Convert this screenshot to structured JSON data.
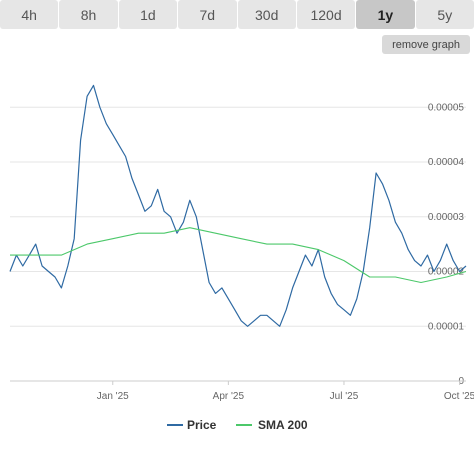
{
  "timeframes": {
    "tabs": [
      {
        "label": "4h",
        "active": false
      },
      {
        "label": "8h",
        "active": false
      },
      {
        "label": "1d",
        "active": false
      },
      {
        "label": "7d",
        "active": false
      },
      {
        "label": "30d",
        "active": false
      },
      {
        "label": "120d",
        "active": false
      },
      {
        "label": "1y",
        "active": true
      },
      {
        "label": "5y",
        "active": false
      }
    ]
  },
  "remove_graph_label": "remove graph",
  "colors": {
    "price": "#2f6aa3",
    "sma": "#4cc86a",
    "grid": "#e6e6e6",
    "tab_bg": "#e6e6e6",
    "tab_active_bg": "#c7c7c7"
  },
  "chart_data": {
    "type": "line",
    "title": "",
    "xlabel": "",
    "ylabel": "",
    "ylim": [
      0,
      5.9e-06
    ],
    "yticks": [
      "0",
      "0.00001",
      "0.00002",
      "0.00003",
      "0.00004",
      "0.00005"
    ],
    "xticks": [
      "Jan '25",
      "Apr '25",
      "Jul '25",
      "Oct '25"
    ],
    "grid": true,
    "legend_placement": "bottom-center",
    "series": [
      {
        "name": "Price",
        "color": "#2f6aa3",
        "values": [
          [
            0,
            2e-06
          ],
          [
            1,
            2.3e-06
          ],
          [
            2,
            2.1e-06
          ],
          [
            3,
            2.3e-06
          ],
          [
            4,
            2.5e-06
          ],
          [
            5,
            2.1e-06
          ],
          [
            6,
            2e-06
          ],
          [
            7,
            1.9e-06
          ],
          [
            8,
            1.7e-06
          ],
          [
            9,
            2.1e-06
          ],
          [
            10,
            2.6e-06
          ],
          [
            11,
            4.4e-06
          ],
          [
            12,
            5.2e-06
          ],
          [
            13,
            5.4e-06
          ],
          [
            14,
            5e-06
          ],
          [
            15,
            4.7e-06
          ],
          [
            16,
            4.5e-06
          ],
          [
            17,
            4.3e-06
          ],
          [
            18,
            4.1e-06
          ],
          [
            19,
            3.7e-06
          ],
          [
            20,
            3.4e-06
          ],
          [
            21,
            3.1e-06
          ],
          [
            22,
            3.2e-06
          ],
          [
            23,
            3.5e-06
          ],
          [
            24,
            3.1e-06
          ],
          [
            25,
            3e-06
          ],
          [
            26,
            2.7e-06
          ],
          [
            27,
            2.9e-06
          ],
          [
            28,
            3.3e-06
          ],
          [
            29,
            3e-06
          ],
          [
            30,
            2.4e-06
          ],
          [
            31,
            1.8e-06
          ],
          [
            32,
            1.6e-06
          ],
          [
            33,
            1.7e-06
          ],
          [
            34,
            1.5e-06
          ],
          [
            35,
            1.3e-06
          ],
          [
            36,
            1.1e-06
          ],
          [
            37,
            1e-06
          ],
          [
            38,
            1.1e-06
          ],
          [
            39,
            1.2e-06
          ],
          [
            40,
            1.2e-06
          ],
          [
            41,
            1.1e-06
          ],
          [
            42,
            1e-06
          ],
          [
            43,
            1.3e-06
          ],
          [
            44,
            1.7e-06
          ],
          [
            45,
            2e-06
          ],
          [
            46,
            2.3e-06
          ],
          [
            47,
            2.1e-06
          ],
          [
            48,
            2.4e-06
          ],
          [
            49,
            1.9e-06
          ],
          [
            50,
            1.6e-06
          ],
          [
            51,
            1.4e-06
          ],
          [
            52,
            1.3e-06
          ],
          [
            53,
            1.2e-06
          ],
          [
            54,
            1.5e-06
          ],
          [
            55,
            2e-06
          ],
          [
            56,
            2.8e-06
          ],
          [
            57,
            3.8e-06
          ],
          [
            58,
            3.6e-06
          ],
          [
            59,
            3.3e-06
          ],
          [
            60,
            2.9e-06
          ],
          [
            61,
            2.7e-06
          ],
          [
            62,
            2.4e-06
          ],
          [
            63,
            2.2e-06
          ],
          [
            64,
            2.1e-06
          ],
          [
            65,
            2.3e-06
          ],
          [
            66,
            2e-06
          ],
          [
            67,
            2.2e-06
          ],
          [
            68,
            2.5e-06
          ],
          [
            69,
            2.2e-06
          ],
          [
            70,
            2e-06
          ],
          [
            71,
            2.1e-06
          ]
        ]
      },
      {
        "name": "SMA 200",
        "color": "#4cc86a",
        "values": [
          [
            0,
            2.3e-06
          ],
          [
            4,
            2.3e-06
          ],
          [
            8,
            2.3e-06
          ],
          [
            12,
            2.5e-06
          ],
          [
            16,
            2.6e-06
          ],
          [
            20,
            2.7e-06
          ],
          [
            24,
            2.7e-06
          ],
          [
            28,
            2.8e-06
          ],
          [
            32,
            2.7e-06
          ],
          [
            36,
            2.6e-06
          ],
          [
            40,
            2.5e-06
          ],
          [
            44,
            2.5e-06
          ],
          [
            48,
            2.4e-06
          ],
          [
            52,
            2.2e-06
          ],
          [
            56,
            1.9e-06
          ],
          [
            60,
            1.9e-06
          ],
          [
            64,
            1.8e-06
          ],
          [
            68,
            1.9e-06
          ],
          [
            71,
            2e-06
          ]
        ]
      }
    ],
    "x_axis_ticks_index": [
      16,
      34,
      52,
      70
    ]
  }
}
